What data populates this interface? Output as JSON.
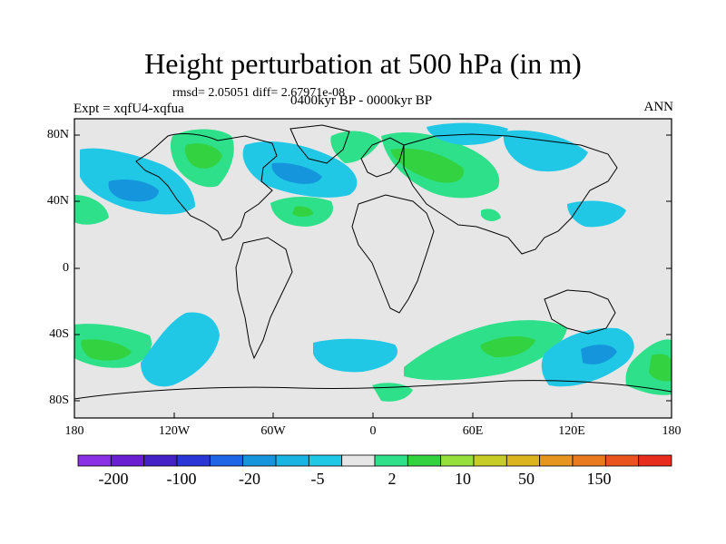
{
  "title": "Height perturbation at 500 hPa (in m)",
  "stats": "rmsd= 2.05051 diff= 2.67971e-08",
  "experiment": "Expt = xqfU4-xqfua",
  "period": "0400kyr BP - 0000kyr BP",
  "season": "ANN",
  "y_ticks": [
    "80N",
    "40N",
    "0",
    "40S",
    "80S"
  ],
  "x_ticks": [
    "180",
    "120W",
    "60W",
    "0",
    "60E",
    "120E",
    "180"
  ],
  "colorbar": {
    "colors": [
      "#8c30e6",
      "#6a1fd1",
      "#4422c6",
      "#2a37d6",
      "#1e66e6",
      "#1596dc",
      "#1ab4e2",
      "#20c8e6",
      "#e6e6e6",
      "#2ee08a",
      "#32d240",
      "#96e03c",
      "#c8cc26",
      "#dcb41e",
      "#e6961e",
      "#ea7a1e",
      "#ea521e",
      "#e62d1e"
    ],
    "labels": [
      "-200",
      "-100",
      "-20",
      "-5",
      "2",
      "10",
      "50",
      "150"
    ]
  },
  "fill_colors": {
    "background": "#e6e6e6",
    "light_blue": "#20c8e6",
    "mid_blue": "#1ab4e2",
    "blue": "#1596dc",
    "light_green": "#2ee08a",
    "green": "#32d240"
  }
}
